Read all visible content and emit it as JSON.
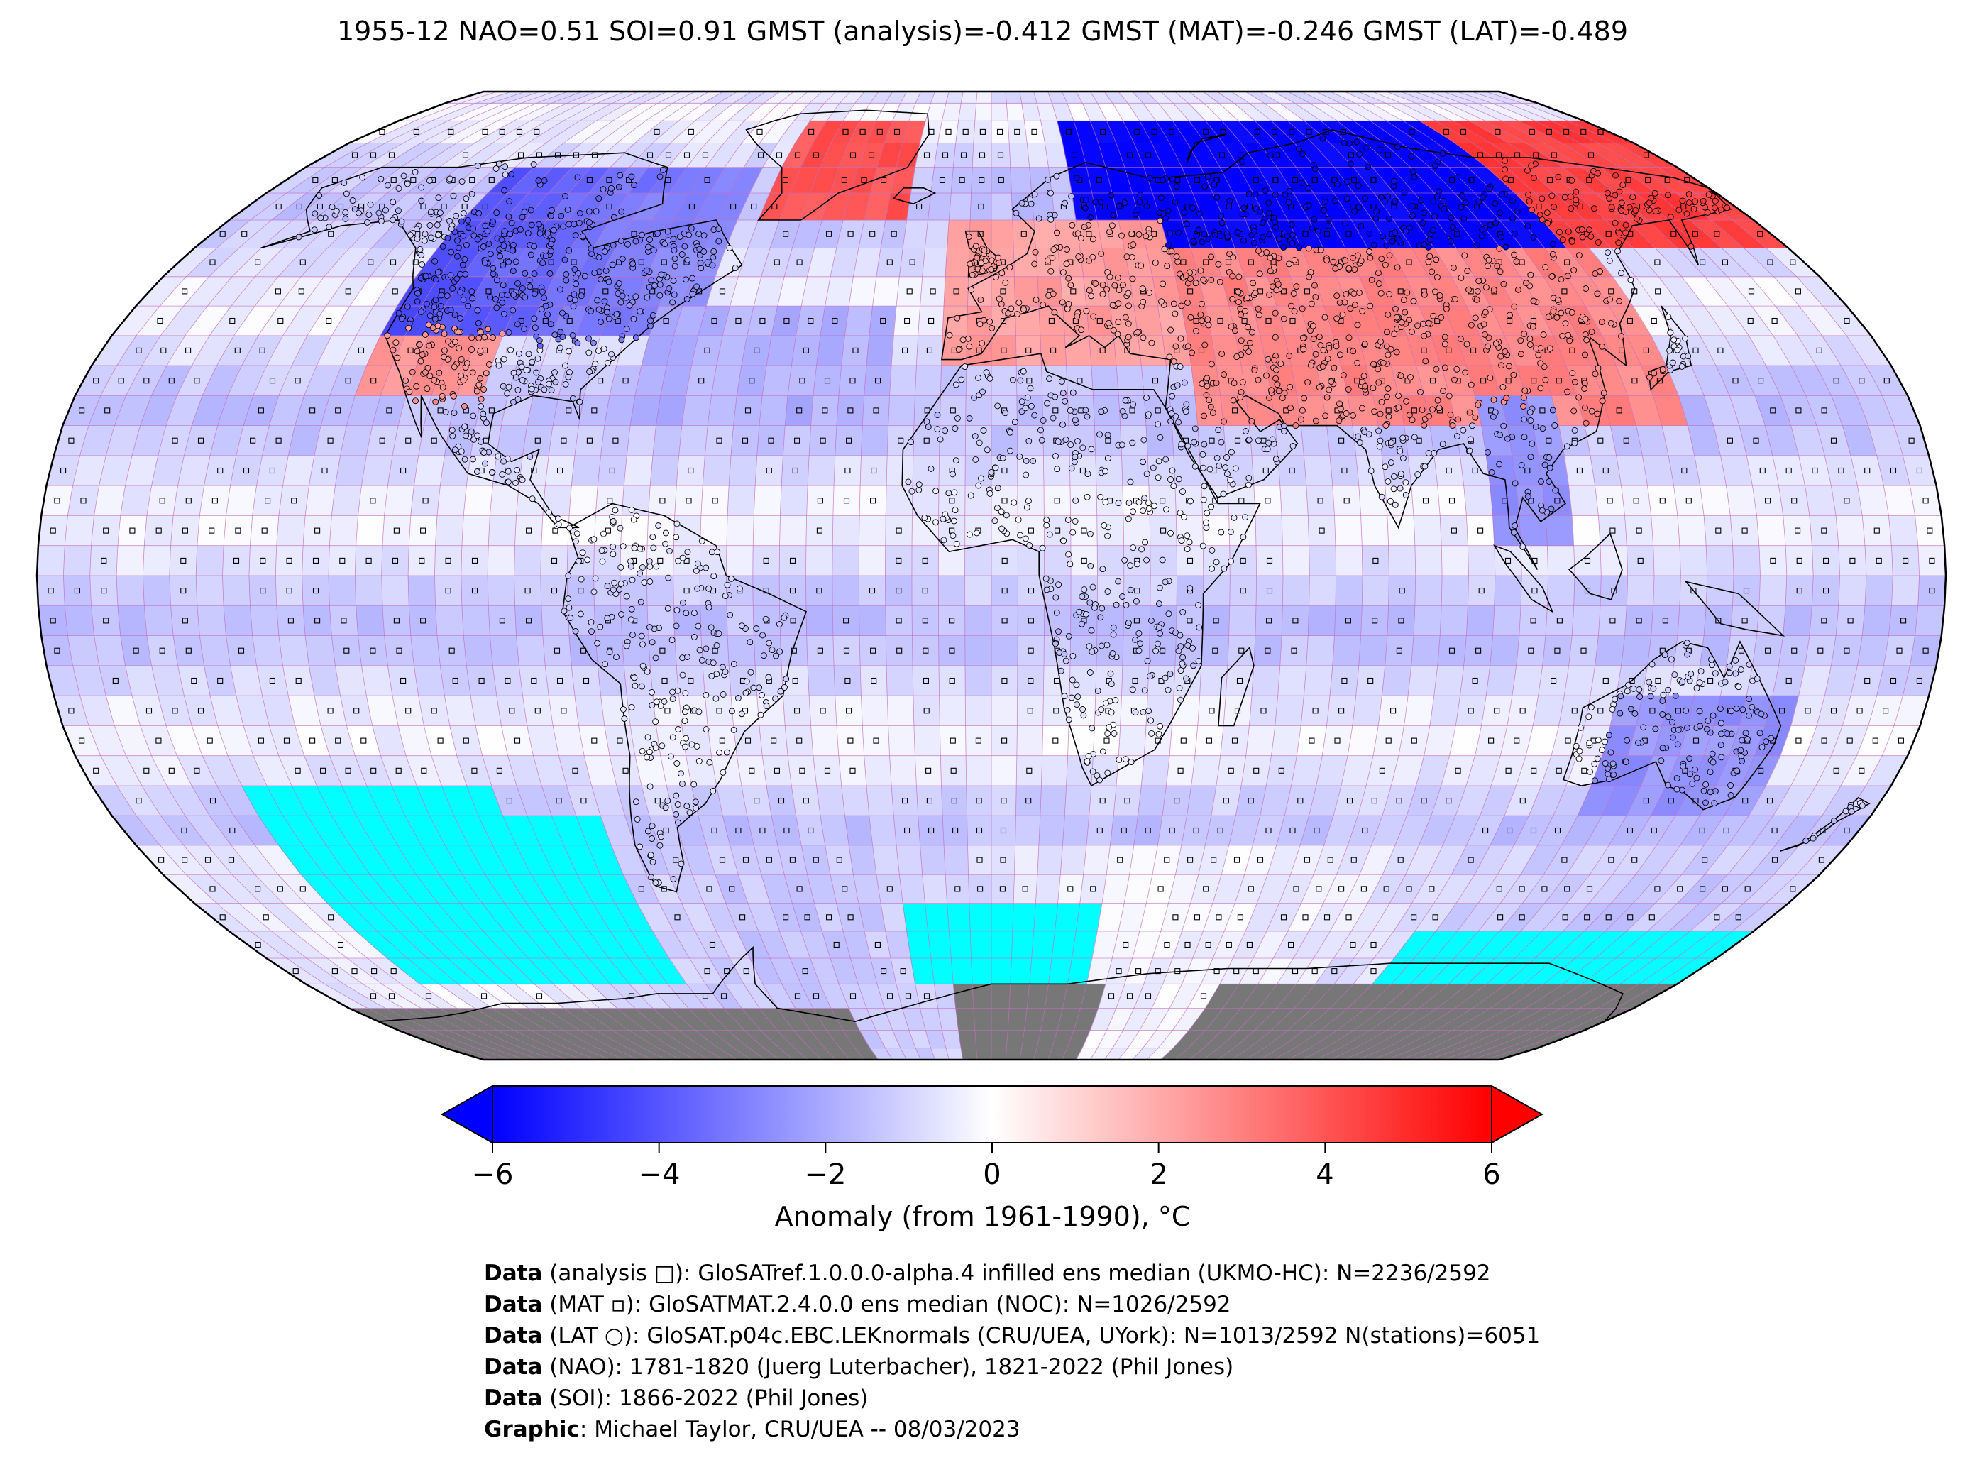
{
  "title": "1955-12 NAO=0.51 SOI=0.91 GMST (analysis)=-0.412 GMST (MAT)=-0.246 GMST (LAT)=-0.489",
  "colorbar": {
    "label": "Anomaly (from 1961-1990), °C",
    "ticks": [
      "−6",
      "−4",
      "−2",
      "0",
      "2",
      "4",
      "6"
    ],
    "tick_values": [
      -6,
      -4,
      -2,
      0,
      2,
      4,
      6
    ],
    "range": [
      -6,
      6
    ],
    "extend": "both",
    "cmap_low": "#0000ff",
    "cmap_mid": "#ffffff",
    "cmap_high": "#ff0000"
  },
  "map": {
    "projection": "Robinson",
    "grid_line_color": "#c070c0",
    "missing_ocean_color": "#00ffff",
    "missing_land_color": "#777777",
    "coastline_color": "#000000"
  },
  "credits": [
    {
      "bold": "Data",
      "text": " (analysis □): GloSATref.1.0.0.0-alpha.4 infilled ens median (UKMO-HC): N=2236/2592"
    },
    {
      "bold": "Data",
      "text": " (MAT ▫): GloSATMAT.2.4.0.0 ens median (NOC): N=1026/2592"
    },
    {
      "bold": "Data",
      "text": " (LAT ○): GloSAT.p04c.EBC.LEKnormals (CRU/UEA, UYork): N=1013/2592 N(stations)=6051"
    },
    {
      "bold": "Data",
      "text": " (NAO): 1781-1820 (Juerg Luterbacher), 1821-2022 (Phil Jones)"
    },
    {
      "bold": "Data",
      "text": " (SOI): 1866-2022 (Phil Jones)"
    },
    {
      "bold": "Graphic",
      "text": ": Michael Taylor, CRU/UEA -- 08/03/2023"
    }
  ]
}
